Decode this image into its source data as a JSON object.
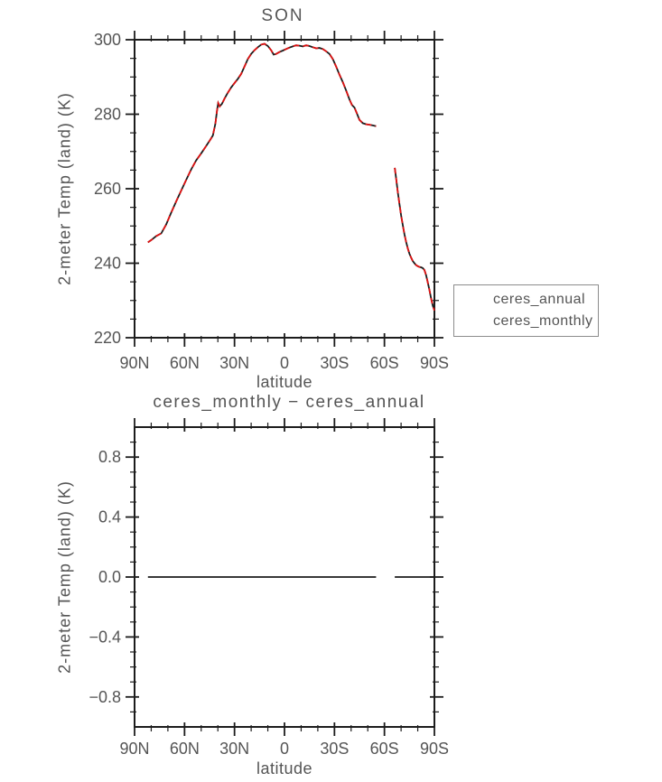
{
  "figure": {
    "background": "#ffffff",
    "text_color": "#555555",
    "axis_color": "#1c1c1c"
  },
  "chart_data": [
    {
      "type": "line",
      "title": "SON",
      "xlabel": "latitude",
      "ylabel": "2-meter Temp (land) (K)",
      "xlim": [
        90,
        -90
      ],
      "ylim": [
        220,
        300
      ],
      "grid": false,
      "x_tick_values": [
        90,
        60,
        30,
        0,
        -30,
        -60,
        -90
      ],
      "x_tick_labels": [
        "90N",
        "60N",
        "30N",
        "0",
        "30S",
        "60S",
        "90S"
      ],
      "x_minor_step": 10,
      "y_tick_values": [
        220,
        240,
        260,
        280,
        300
      ],
      "y_tick_labels": [
        "220",
        "240",
        "260",
        "280",
        "300"
      ],
      "y_minor_step": 5,
      "legend": {
        "position": "outside-right-bottom",
        "entries": [
          {
            "label": "ceres_annual",
            "color": "#e01212",
            "style": "dashed"
          },
          {
            "label": "ceres_monthly",
            "color": "#1c1c1c",
            "style": "solid"
          }
        ]
      },
      "series": [
        {
          "name": "ceres_monthly",
          "color": "#1c1c1c",
          "style": "solid",
          "segments": [
            [
              [
                82,
                245.6
              ],
              [
                80,
                246.2
              ],
              [
                77,
                247.3
              ],
              [
                74,
                248
              ],
              [
                71,
                250.4
              ],
              [
                68,
                253.6
              ],
              [
                65,
                256.6
              ],
              [
                62,
                259.5
              ],
              [
                59,
                262.4
              ],
              [
                56,
                265.2
              ],
              [
                53,
                267.6
              ],
              [
                50,
                269.5
              ],
              [
                47,
                271.5
              ],
              [
                44.5,
                273.2
              ],
              [
                43,
                274.3
              ],
              [
                41.5,
                277.5
              ],
              [
                40.5,
                281
              ],
              [
                39.8,
                283
              ],
              [
                38.9,
                282.1
              ],
              [
                37.5,
                282.8
              ],
              [
                36,
                284.2
              ],
              [
                34,
                285.8
              ],
              [
                32,
                287.2
              ],
              [
                30,
                288.4
              ],
              [
                28,
                289.5
              ],
              [
                26,
                290.8
              ],
              [
                24,
                292.8
              ],
              [
                22,
                294.8
              ],
              [
                20,
                296.2
              ],
              [
                18,
                297.2
              ],
              [
                16,
                298
              ],
              [
                14,
                298.7
              ],
              [
                12,
                298.9
              ],
              [
                10,
                298.3
              ],
              [
                8,
                297.2
              ],
              [
                6.5,
                296
              ],
              [
                5,
                296.2
              ],
              [
                3,
                296.7
              ],
              [
                1,
                297.1
              ],
              [
                -1,
                297.5
              ],
              [
                -3,
                297.9
              ],
              [
                -5,
                298.2
              ],
              [
                -7,
                298.5
              ],
              [
                -9,
                298.4
              ],
              [
                -11,
                298.2
              ],
              [
                -13,
                298.5
              ],
              [
                -15,
                298.3
              ],
              [
                -17,
                298
              ],
              [
                -19,
                297.7
              ],
              [
                -21,
                297.8
              ],
              [
                -23,
                297.5
              ],
              [
                -25,
                296.9
              ],
              [
                -27,
                296.2
              ],
              [
                -29,
                294.8
              ],
              [
                -31,
                292.8
              ],
              [
                -33,
                290.6
              ],
              [
                -35,
                288.6
              ],
              [
                -37,
                286.4
              ],
              [
                -39,
                284
              ],
              [
                -40.5,
                282.5
              ],
              [
                -42,
                281.8
              ],
              [
                -43.5,
                280.2
              ],
              [
                -45,
                278.5
              ],
              [
                -47,
                277.6
              ],
              [
                -49,
                277.3
              ],
              [
                -51,
                277.2
              ],
              [
                -53,
                277
              ],
              [
                -55,
                276.8
              ]
            ],
            [
              [
                -66.2,
                265.6
              ],
              [
                -67,
                262.8
              ],
              [
                -68,
                259.2
              ],
              [
                -69,
                255.9
              ],
              [
                -70,
                252.9
              ],
              [
                -71,
                250.2
              ],
              [
                -72,
                247.8
              ],
              [
                -73,
                245.8
              ],
              [
                -74,
                244
              ],
              [
                -75,
                242.6
              ],
              [
                -76,
                241.5
              ],
              [
                -77,
                240.6
              ],
              [
                -78,
                240
              ],
              [
                -79,
                239.5
              ],
              [
                -80,
                239.2
              ],
              [
                -81,
                239
              ],
              [
                -82,
                238.9
              ],
              [
                -83,
                238.7
              ],
              [
                -84,
                238.2
              ],
              [
                -85,
                236.8
              ],
              [
                -86,
                234.9
              ],
              [
                -87,
                232.8
              ],
              [
                -88,
                230.6
              ],
              [
                -89,
                228.6
              ],
              [
                -90,
                227.3
              ]
            ]
          ]
        },
        {
          "name": "ceres_annual",
          "color": "#e01212",
          "style": "dashed",
          "segments": [
            [
              [
                82,
                245.6
              ],
              [
                80,
                246.2
              ],
              [
                77,
                247.3
              ],
              [
                74,
                248
              ],
              [
                71,
                250.4
              ],
              [
                68,
                253.6
              ],
              [
                65,
                256.6
              ],
              [
                62,
                259.5
              ],
              [
                59,
                262.4
              ],
              [
                56,
                265.2
              ],
              [
                53,
                267.6
              ],
              [
                50,
                269.5
              ],
              [
                47,
                271.5
              ],
              [
                44.5,
                273.2
              ],
              [
                43,
                274.3
              ],
              [
                41.5,
                277.5
              ],
              [
                40.5,
                281
              ],
              [
                39.8,
                283
              ],
              [
                38.9,
                282.1
              ],
              [
                37.5,
                282.8
              ],
              [
                36,
                284.2
              ],
              [
                34,
                285.8
              ],
              [
                32,
                287.2
              ],
              [
                30,
                288.4
              ],
              [
                28,
                289.5
              ],
              [
                26,
                290.8
              ],
              [
                24,
                292.8
              ],
              [
                22,
                294.8
              ],
              [
                20,
                296.2
              ],
              [
                18,
                297.2
              ],
              [
                16,
                298
              ],
              [
                14,
                298.7
              ],
              [
                12,
                298.9
              ],
              [
                10,
                298.3
              ],
              [
                8,
                297.2
              ],
              [
                6.5,
                296
              ],
              [
                5,
                296.2
              ],
              [
                3,
                296.7
              ],
              [
                1,
                297.1
              ],
              [
                -1,
                297.5
              ],
              [
                -3,
                297.9
              ],
              [
                -5,
                298.2
              ],
              [
                -7,
                298.5
              ],
              [
                -9,
                298.4
              ],
              [
                -11,
                298.2
              ],
              [
                -13,
                298.5
              ],
              [
                -15,
                298.3
              ],
              [
                -17,
                298
              ],
              [
                -19,
                297.7
              ],
              [
                -21,
                297.8
              ],
              [
                -23,
                297.5
              ],
              [
                -25,
                296.9
              ],
              [
                -27,
                296.2
              ],
              [
                -29,
                294.8
              ],
              [
                -31,
                292.8
              ],
              [
                -33,
                290.6
              ],
              [
                -35,
                288.6
              ],
              [
                -37,
                286.4
              ],
              [
                -39,
                284
              ],
              [
                -40.5,
                282.5
              ],
              [
                -42,
                281.8
              ],
              [
                -43.5,
                280.2
              ],
              [
                -45,
                278.5
              ],
              [
                -47,
                277.6
              ],
              [
                -49,
                277.3
              ],
              [
                -51,
                277.2
              ],
              [
                -53,
                277
              ],
              [
                -55,
                276.8
              ]
            ],
            [
              [
                -66.2,
                265.6
              ],
              [
                -67,
                262.8
              ],
              [
                -68,
                259.2
              ],
              [
                -69,
                255.9
              ],
              [
                -70,
                252.9
              ],
              [
                -71,
                250.2
              ],
              [
                -72,
                247.8
              ],
              [
                -73,
                245.8
              ],
              [
                -74,
                244
              ],
              [
                -75,
                242.6
              ],
              [
                -76,
                241.5
              ],
              [
                -77,
                240.6
              ],
              [
                -78,
                240
              ],
              [
                -79,
                239.5
              ],
              [
                -80,
                239.2
              ],
              [
                -81,
                239
              ],
              [
                -82,
                238.9
              ],
              [
                -83,
                238.7
              ],
              [
                -84,
                238.2
              ],
              [
                -85,
                236.8
              ],
              [
                -86,
                234.9
              ],
              [
                -87,
                232.8
              ],
              [
                -88,
                230.6
              ],
              [
                -89,
                228.6
              ],
              [
                -90,
                227.3
              ]
            ]
          ]
        }
      ]
    },
    {
      "type": "line",
      "title": "ceres_monthly − ceres_annual",
      "xlabel": "latitude",
      "ylabel": "2-meter Temp (land) (K)",
      "xlim": [
        90,
        -90
      ],
      "ylim": [
        -1,
        1
      ],
      "grid": false,
      "x_tick_values": [
        90,
        60,
        30,
        0,
        -30,
        -60,
        -90
      ],
      "x_tick_labels": [
        "90N",
        "60N",
        "30N",
        "0",
        "30S",
        "60S",
        "90S"
      ],
      "x_minor_step": 10,
      "y_tick_values": [
        0.8,
        0.4,
        0,
        -0.4,
        -0.8
      ],
      "y_tick_labels": [
        "0.8",
        "0.4",
        "0.0",
        "−0.4",
        "−0.8"
      ],
      "y_minor_step": 0.1,
      "series": [
        {
          "name": "ceres_monthly minus ceres_annual",
          "color": "#1c1c1c",
          "style": "solid",
          "segments": [
            [
              [
                82,
                0
              ],
              [
                -55,
                0
              ]
            ],
            [
              [
                -66.2,
                0
              ],
              [
                -90,
                0
              ]
            ]
          ]
        }
      ]
    }
  ]
}
